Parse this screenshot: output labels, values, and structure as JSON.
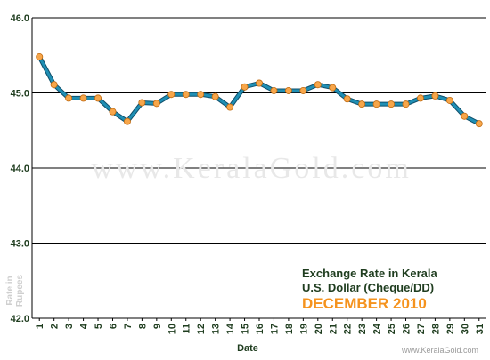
{
  "chart_data": {
    "type": "line",
    "title_line1": "Exchange Rate in Kerala",
    "title_line2": "U.S. Dollar (Cheque/DD)",
    "title_line3": "DECEMBER 2010",
    "xlabel": "Date",
    "ylabel_line1": "Rate in",
    "ylabel_line2": "Rupees",
    "ylim": [
      42.0,
      46.0
    ],
    "yticks": [
      "42.0",
      "43.0",
      "44.0",
      "45.0",
      "46.0"
    ],
    "grid": true,
    "categories": [
      "1",
      "2",
      "3",
      "4",
      "5",
      "6",
      "7",
      "8",
      "9",
      "10",
      "11",
      "12",
      "13",
      "14",
      "15",
      "16",
      "17",
      "18",
      "19",
      "20",
      "21",
      "22",
      "23",
      "24",
      "25",
      "26",
      "27",
      "28",
      "29",
      "30",
      "31"
    ],
    "values": [
      45.48,
      45.11,
      44.93,
      44.93,
      44.93,
      44.75,
      44.62,
      44.87,
      44.86,
      44.98,
      44.98,
      44.98,
      44.95,
      44.81,
      45.08,
      45.13,
      45.03,
      45.03,
      45.03,
      45.11,
      45.07,
      44.92,
      44.85,
      44.85,
      44.85,
      44.85,
      44.93,
      44.96,
      44.9,
      44.69,
      44.59
    ],
    "line_color": "#1f8fb4",
    "marker_color": "#f7a64a"
  },
  "watermark": "www.KeralaGold.com",
  "credit": "www.KeralaGold.com"
}
